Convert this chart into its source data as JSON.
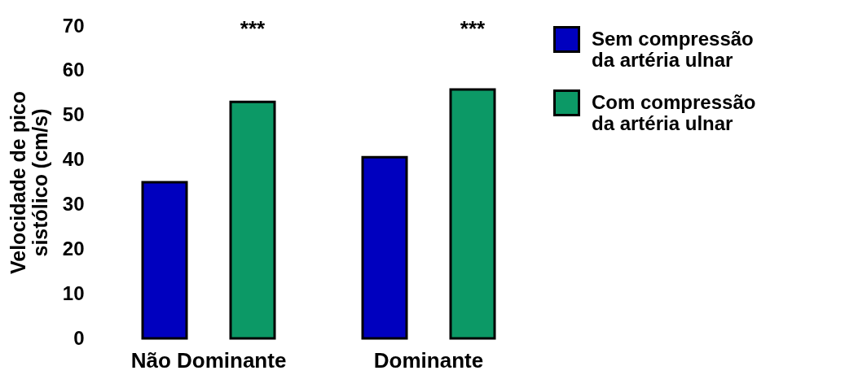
{
  "chart_data": {
    "type": "bar",
    "ylabel": "Velocidade de pico\nsistólico (cm/s)",
    "categories": [
      "Não Dominante",
      "Dominante"
    ],
    "series": [
      {
        "name": "Sem compressão\nda artéria ulnar",
        "color": "#0000bf",
        "values": [
          35,
          40.6
        ]
      },
      {
        "name": "Com compressão\nda artéria ulnar",
        "color": "#0c9966",
        "values": [
          53,
          55.8
        ]
      }
    ],
    "ylim": [
      0,
      70
    ],
    "yticks": [
      0,
      10,
      20,
      30,
      40,
      50,
      60,
      70
    ],
    "grid": false,
    "legend": "top right",
    "annotations": [
      "***",
      "***"
    ]
  }
}
